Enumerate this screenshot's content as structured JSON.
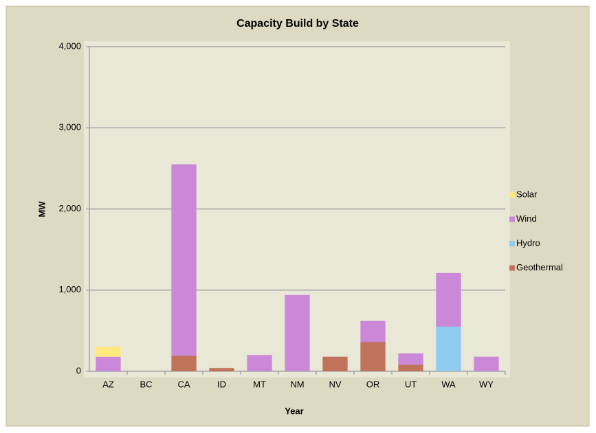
{
  "chart_data": {
    "type": "stacked_bar",
    "title": "Capacity Build by State",
    "xlabel": "Year",
    "ylabel": "MW",
    "categories": [
      "AZ",
      "BC",
      "CA",
      "ID",
      "MT",
      "NM",
      "NV",
      "OR",
      "UT",
      "WA",
      "WY"
    ],
    "series": [
      {
        "name": "Geothermal",
        "color": "#c0735a",
        "values": [
          0,
          0,
          190,
          40,
          0,
          0,
          180,
          360,
          80,
          0,
          0
        ]
      },
      {
        "name": "Hydro",
        "color": "#8ecbef",
        "values": [
          0,
          0,
          0,
          0,
          0,
          0,
          0,
          0,
          0,
          550,
          0
        ]
      },
      {
        "name": "Wind",
        "color": "#cc88d8",
        "values": [
          180,
          0,
          2360,
          0,
          200,
          940,
          0,
          260,
          140,
          660,
          180
        ]
      },
      {
        "name": "Solar",
        "color": "#ffe87c",
        "values": [
          120,
          0,
          0,
          0,
          0,
          0,
          0,
          0,
          0,
          0,
          0
        ]
      }
    ],
    "ylim": [
      0,
      4000
    ],
    "yticks": [
      0,
      {
        "value": 1000,
        "label": "1,000"
      },
      {
        "value": 2000,
        "label": "2,000"
      },
      {
        "value": 3000,
        "label": "3,000"
      },
      {
        "value": 4000,
        "label": "4,000"
      }
    ],
    "grid": true,
    "legend": "right"
  }
}
